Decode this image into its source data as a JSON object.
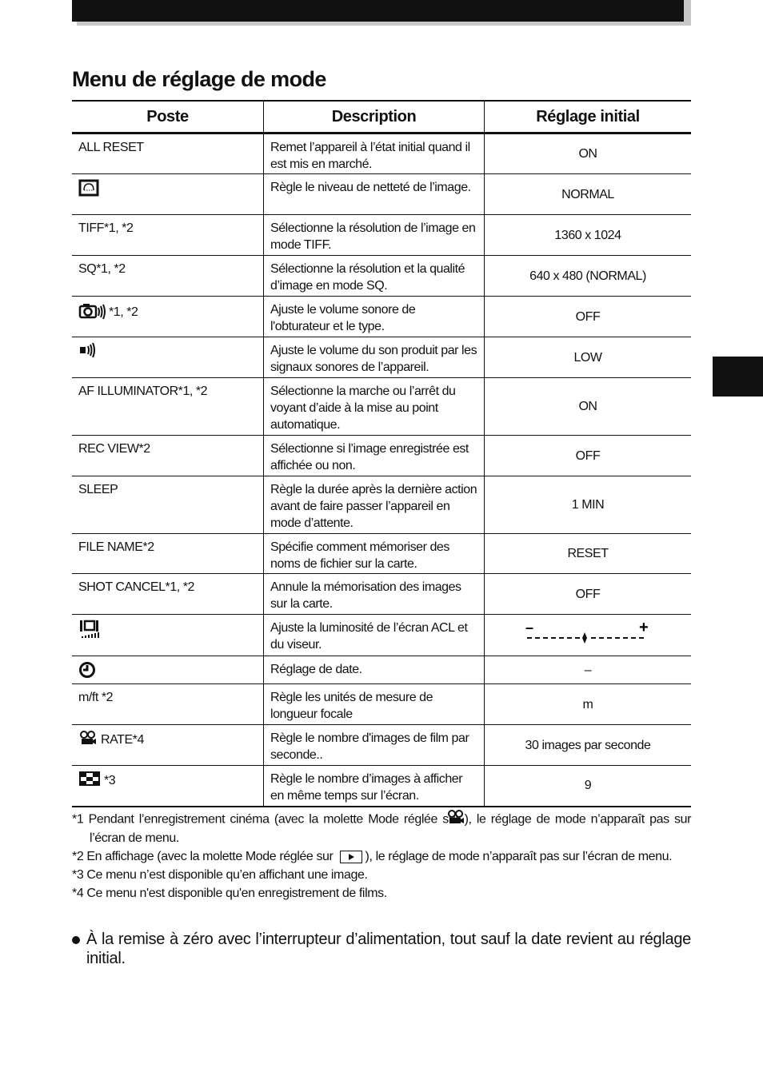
{
  "title": "Menu de réglage de mode",
  "table": {
    "headers": [
      "Poste",
      "Description",
      "Réglage initial"
    ],
    "rows": [
      {
        "icon": "",
        "poste": "ALL RESET",
        "description": "Remet l’appareil à l’état initial quand il est mis en marché.",
        "initial": "ON"
      },
      {
        "icon": "sharpness-icon",
        "poste": "",
        "description": "Règle le niveau de netteté de l’image.",
        "initial": "NORMAL"
      },
      {
        "icon": "",
        "poste": "TIFF*1, *2",
        "description": "Sélectionne la résolution de l’image en mode TIFF.",
        "initial": "1360 x 1024"
      },
      {
        "icon": "",
        "poste": "SQ*1, *2",
        "description": "Sélectionne la résolution et la qualité d’image en mode SQ.",
        "initial": "640 x 480 (NORMAL)"
      },
      {
        "icon": "shutter-sound-icon",
        "poste": "*1, *2",
        "description": "Ajuste le volume sonore de l'obturateur et le type.",
        "initial": "OFF"
      },
      {
        "icon": "beep-sound-icon",
        "poste": "",
        "description": "Ajuste le volume du son produit par les signaux sonores de l’appareil.",
        "initial": "LOW"
      },
      {
        "icon": "",
        "poste": "AF ILLUMINATOR*1, *2",
        "description": "Sélectionne la marche ou l’arrêt du voyant d’aide à la mise au point automatique.",
        "initial": "ON"
      },
      {
        "icon": "",
        "poste": "REC VIEW*2",
        "description": "Sélectionne si l’image enregistrée est affichée ou non.",
        "initial": "OFF"
      },
      {
        "icon": "",
        "poste": "SLEEP",
        "description": "Règle la durée après la dernière action avant de faire passer l’appareil en mode d’attente.",
        "initial": "1 MIN"
      },
      {
        "icon": "",
        "poste": "FILE NAME*2",
        "description": "Spécifie comment mémoriser des noms de fichier sur la carte.",
        "initial": "RESET"
      },
      {
        "icon": "",
        "poste": "SHOT CANCEL*1, *2",
        "description": "Annule la mémorisation des images sur la carte.",
        "initial": "OFF"
      },
      {
        "icon": "monitor-brightness-icon",
        "poste": "",
        "description": "Ajuste la luminosité de l’écran ACL et du viseur.",
        "initial": "",
        "slider": {
          "min_label": "–",
          "max_label": "+",
          "level": 0.5
        }
      },
      {
        "icon": "clock-icon",
        "poste": "",
        "description": "Réglage de date.",
        "initial": "–"
      },
      {
        "icon": "",
        "poste": "m/ft *2",
        "description": "Règle les unités de mesure de longueur focale",
        "initial": "m"
      },
      {
        "icon": "movie-icon",
        "poste": "RATE*4",
        "description": "Règle le nombre d'images de film par seconde..",
        "initial": "30 images par seconde"
      },
      {
        "icon": "index-display-icon",
        "poste": "*3",
        "description": "Règle le nombre d’images à afficher en même temps sur l’écran.",
        "initial": "9"
      }
    ]
  },
  "footnotes": {
    "f1_mark": "*1",
    "f1_a": "Pendant l’enregistrement cinéma (avec la molette Mode réglée sur",
    "f1_b": "), le réglage de mode n’apparaît pas sur l’écran de menu.",
    "f2_mark": "*2",
    "f2_a": "En affichage (avec la molette Mode réglée sur",
    "f2_b": "), le réglage de mode n’apparaît pas sur l’écran de menu.",
    "f3_mark": "*3",
    "f3": "Ce menu n’est disponible qu’en affichant une image.",
    "f4_mark": "*4",
    "f4": "Ce menu n'est disponible qu'en enregistrement de films."
  },
  "note": "À la remise à zéro avec l’interrupteur d’alimentation, tout sauf la date revient au réglage initial."
}
